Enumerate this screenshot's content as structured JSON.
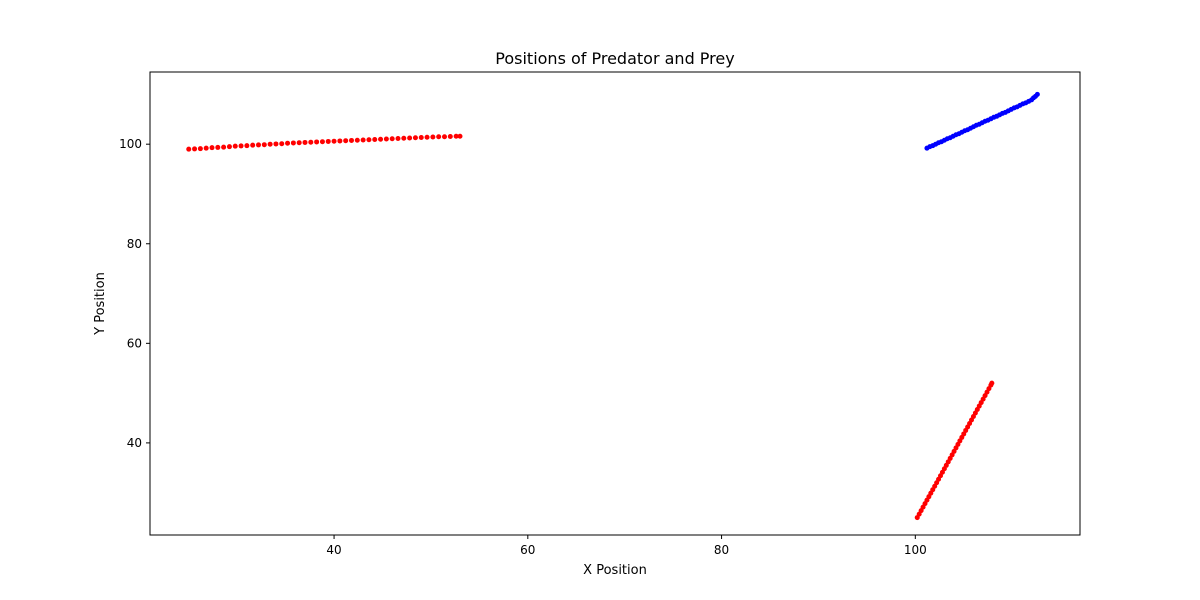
{
  "chart_data": {
    "type": "scatter",
    "title": "Positions of Predator and Prey",
    "xlabel": "X Position",
    "ylabel": "Y Position",
    "xlim": [
      21,
      117
    ],
    "ylim": [
      21.5,
      114.5
    ],
    "xticks": [
      40,
      60,
      80,
      100
    ],
    "yticks": [
      40,
      60,
      80,
      100
    ],
    "grid": false,
    "legend": "none",
    "series": [
      {
        "color": "#0000ff",
        "marker_size": 5,
        "points": [
          [
            101.2,
            99.2
          ],
          [
            101.5,
            99.5
          ],
          [
            101.8,
            99.7
          ],
          [
            102.1,
            100.0
          ],
          [
            102.4,
            100.3
          ],
          [
            102.7,
            100.5
          ],
          [
            103.0,
            100.8
          ],
          [
            103.3,
            101.1
          ],
          [
            103.6,
            101.3
          ],
          [
            103.9,
            101.6
          ],
          [
            104.2,
            101.9
          ],
          [
            104.5,
            102.1
          ],
          [
            104.8,
            102.4
          ],
          [
            105.1,
            102.7
          ],
          [
            105.4,
            102.9
          ],
          [
            105.7,
            103.2
          ],
          [
            106.0,
            103.5
          ],
          [
            106.3,
            103.8
          ],
          [
            106.6,
            104.0
          ],
          [
            106.9,
            104.3
          ],
          [
            107.2,
            104.6
          ],
          [
            107.5,
            104.8
          ],
          [
            107.8,
            105.1
          ],
          [
            108.1,
            105.4
          ],
          [
            108.4,
            105.6
          ],
          [
            108.7,
            105.9
          ],
          [
            109.0,
            106.2
          ],
          [
            109.3,
            106.4
          ],
          [
            109.6,
            106.7
          ],
          [
            109.9,
            107.0
          ],
          [
            110.2,
            107.3
          ],
          [
            110.5,
            107.5
          ],
          [
            110.8,
            107.8
          ],
          [
            111.1,
            108.1
          ],
          [
            111.4,
            108.3
          ],
          [
            111.7,
            108.6
          ],
          [
            112.0,
            108.9
          ],
          [
            112.2,
            109.3
          ],
          [
            112.4,
            109.6
          ],
          [
            112.6,
            110.0
          ]
        ]
      },
      {
        "color": "#ff0000",
        "marker_size": 5,
        "points": [
          [
            25.0,
            99.0
          ],
          [
            25.6,
            99.05
          ],
          [
            26.2,
            99.1
          ],
          [
            26.8,
            99.2
          ],
          [
            27.4,
            99.3
          ],
          [
            28.0,
            99.35
          ],
          [
            28.6,
            99.4
          ],
          [
            29.2,
            99.5
          ],
          [
            29.8,
            99.6
          ],
          [
            30.4,
            99.65
          ],
          [
            31.0,
            99.7
          ],
          [
            31.6,
            99.8
          ],
          [
            32.2,
            99.85
          ],
          [
            32.8,
            99.9
          ],
          [
            33.4,
            100.0
          ],
          [
            34.0,
            100.05
          ],
          [
            34.6,
            100.1
          ],
          [
            35.2,
            100.2
          ],
          [
            35.8,
            100.25
          ],
          [
            36.4,
            100.3
          ],
          [
            37.0,
            100.35
          ],
          [
            37.6,
            100.4
          ],
          [
            38.2,
            100.45
          ],
          [
            38.8,
            100.5
          ],
          [
            39.4,
            100.55
          ],
          [
            40.0,
            100.6
          ],
          [
            40.6,
            100.65
          ],
          [
            41.2,
            100.7
          ],
          [
            41.8,
            100.75
          ],
          [
            42.4,
            100.8
          ],
          [
            43.0,
            100.85
          ],
          [
            43.6,
            100.9
          ],
          [
            44.2,
            100.95
          ],
          [
            44.8,
            101.0
          ],
          [
            45.4,
            101.05
          ],
          [
            46.0,
            101.1
          ],
          [
            46.6,
            101.15
          ],
          [
            47.2,
            101.2
          ],
          [
            47.8,
            101.25
          ],
          [
            48.4,
            101.3
          ],
          [
            49.0,
            101.35
          ],
          [
            49.6,
            101.4
          ],
          [
            50.2,
            101.45
          ],
          [
            50.8,
            101.5
          ],
          [
            51.4,
            101.5
          ],
          [
            52.0,
            101.55
          ],
          [
            52.6,
            101.6
          ],
          [
            53.0,
            101.6
          ]
        ]
      },
      {
        "color": "#ff0000",
        "marker_size": 5,
        "points": [
          [
            100.2,
            25.0
          ],
          [
            100.4,
            25.7
          ],
          [
            100.6,
            26.4
          ],
          [
            100.8,
            27.1
          ],
          [
            101.0,
            27.8
          ],
          [
            101.2,
            28.5
          ],
          [
            101.4,
            29.2
          ],
          [
            101.6,
            29.9
          ],
          [
            101.8,
            30.6
          ],
          [
            102.0,
            31.3
          ],
          [
            102.2,
            32.0
          ],
          [
            102.4,
            32.7
          ],
          [
            102.6,
            33.4
          ],
          [
            102.8,
            34.1
          ],
          [
            103.0,
            34.8
          ],
          [
            103.2,
            35.5
          ],
          [
            103.4,
            36.2
          ],
          [
            103.6,
            36.9
          ],
          [
            103.8,
            37.6
          ],
          [
            104.0,
            38.3
          ],
          [
            104.2,
            39.0
          ],
          [
            104.4,
            39.7
          ],
          [
            104.6,
            40.4
          ],
          [
            104.8,
            41.1
          ],
          [
            105.0,
            41.8
          ],
          [
            105.2,
            42.5
          ],
          [
            105.4,
            43.2
          ],
          [
            105.6,
            43.9
          ],
          [
            105.8,
            44.6
          ],
          [
            106.0,
            45.3
          ],
          [
            106.2,
            46.0
          ],
          [
            106.4,
            46.7
          ],
          [
            106.6,
            47.4
          ],
          [
            106.8,
            48.1
          ],
          [
            107.0,
            48.8
          ],
          [
            107.2,
            49.5
          ],
          [
            107.4,
            50.2
          ],
          [
            107.6,
            50.9
          ],
          [
            107.8,
            51.6
          ],
          [
            107.9,
            52.0
          ]
        ]
      }
    ]
  }
}
